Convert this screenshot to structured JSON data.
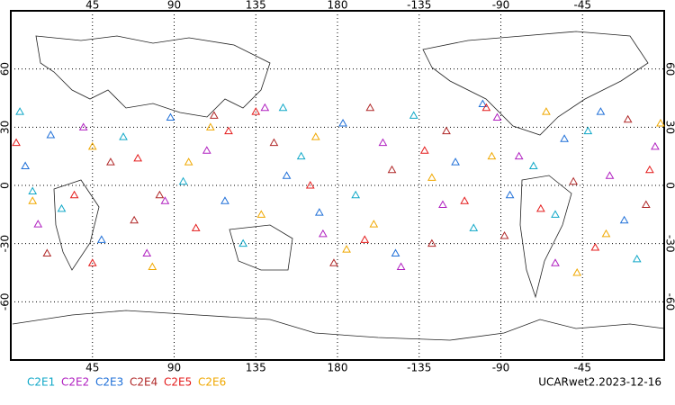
{
  "chart_data": {
    "type": "scatter",
    "footer": "UCARwet2.2023-12-16",
    "xlim": [
      0,
      360
    ],
    "xticks": [
      45,
      90,
      135,
      180,
      {
        "value": 225,
        "label": "-135"
      },
      {
        "value": 270,
        "label": "-90"
      },
      {
        "value": 315,
        "label": "-45"
      }
    ],
    "ylim": [
      -90,
      90
    ],
    "yticks": [
      -60,
      -30,
      0,
      30,
      60
    ],
    "grid": true,
    "series": [
      {
        "name": "C2E1",
        "color": "#10a8c8",
        "x": [
          5,
          28,
          62,
          95,
          128,
          160,
          190,
          222,
          255,
          288,
          318,
          345,
          12,
          150,
          300
        ],
        "values": [
          38,
          -12,
          25,
          2,
          -30,
          15,
          -5,
          36,
          -22,
          10,
          28,
          -38,
          -3,
          40,
          -15
        ]
      },
      {
        "name": "C2E2",
        "color": "#b020c0",
        "x": [
          15,
          40,
          75,
          108,
          140,
          172,
          205,
          238,
          268,
          300,
          330,
          355,
          85,
          215,
          280
        ],
        "values": [
          -20,
          30,
          -35,
          18,
          40,
          -25,
          22,
          -10,
          35,
          -40,
          5,
          20,
          -8,
          -42,
          15
        ]
      },
      {
        "name": "C2E3",
        "color": "#2070d8",
        "x": [
          8,
          50,
          88,
          118,
          152,
          183,
          212,
          245,
          275,
          305,
          338,
          22,
          170,
          260,
          325
        ],
        "values": [
          10,
          -28,
          35,
          -8,
          5,
          32,
          -35,
          12,
          -5,
          24,
          -18,
          26,
          -14,
          42,
          38
        ]
      },
      {
        "name": "C2E4",
        "color": "#b02828",
        "x": [
          20,
          55,
          82,
          112,
          145,
          178,
          210,
          240,
          272,
          310,
          340,
          68,
          198,
          232,
          350
        ],
        "values": [
          -35,
          12,
          -5,
          36,
          22,
          -40,
          8,
          28,
          -26,
          2,
          34,
          -18,
          40,
          -30,
          -10
        ]
      },
      {
        "name": "C2E5",
        "color": "#e41c1c",
        "x": [
          3,
          35,
          70,
          102,
          135,
          165,
          195,
          228,
          262,
          292,
          322,
          352,
          120,
          250,
          45
        ],
        "values": [
          22,
          -5,
          14,
          -22,
          38,
          0,
          -28,
          18,
          40,
          -12,
          -32,
          8,
          28,
          -8,
          -40
        ]
      },
      {
        "name": "C2E6",
        "color": "#f0a800",
        "x": [
          12,
          45,
          78,
          110,
          138,
          168,
          200,
          232,
          265,
          295,
          328,
          358,
          98,
          185,
          312
        ],
        "values": [
          -8,
          20,
          -42,
          30,
          -15,
          25,
          -20,
          4,
          15,
          38,
          -25,
          32,
          12,
          -33,
          -45
        ]
      }
    ]
  }
}
